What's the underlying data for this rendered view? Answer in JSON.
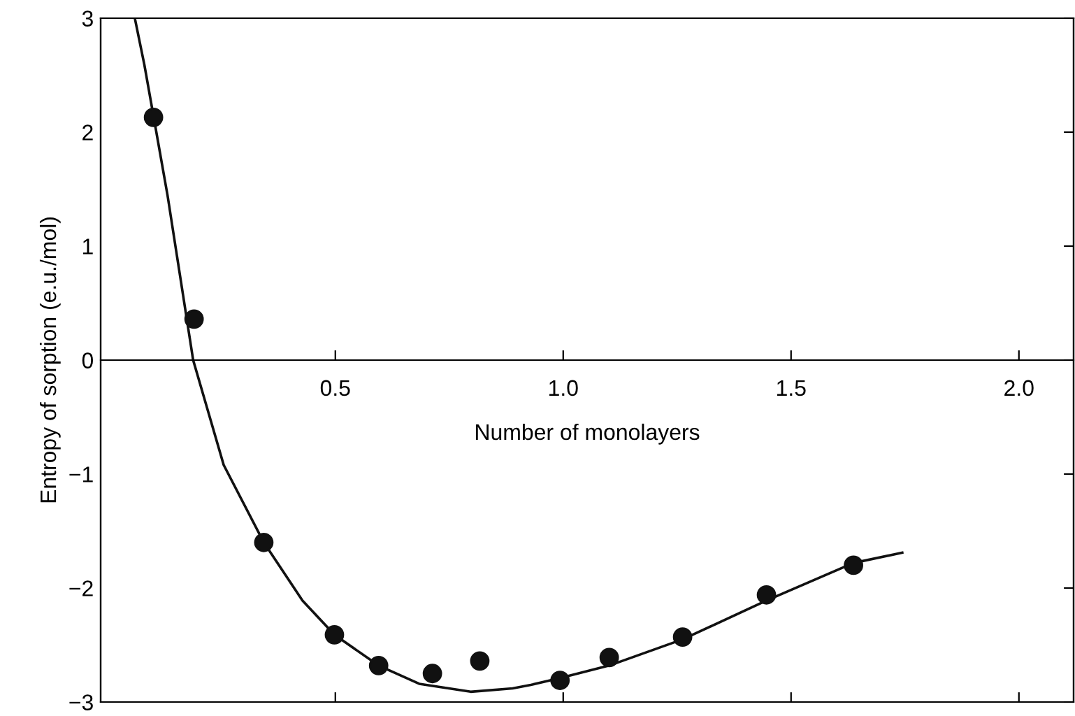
{
  "chart_data": {
    "type": "scatter",
    "xlabel": "Number of monolayers",
    "ylabel": "Entropy of sorption (e.u./mol)",
    "xlim": [
      -0.015,
      2.12
    ],
    "ylim": [
      -3,
      3
    ],
    "xticks": [
      {
        "value": 0.5,
        "label": "0.5"
      },
      {
        "value": 1.0,
        "label": "1.0"
      },
      {
        "value": 1.5,
        "label": "1.5"
      },
      {
        "value": 2.0,
        "label": "2.0"
      }
    ],
    "yticks": [
      {
        "value": -3,
        "label": "−3"
      },
      {
        "value": -2,
        "label": "−2"
      },
      {
        "value": -1,
        "label": "−1"
      },
      0,
      1,
      2,
      3
    ],
    "grid": false,
    "legend": false,
    "series": [
      {
        "color": "#111111",
        "marker": "circle",
        "x": [
          0.101,
          0.19,
          0.343,
          0.498,
          0.595,
          0.713,
          0.817,
          0.993,
          1.101,
          1.262,
          1.446,
          1.637
        ],
        "values": [
          2.13,
          0.36,
          -1.6,
          -2.41,
          -2.68,
          -2.75,
          -2.64,
          -2.81,
          -2.61,
          -2.43,
          -2.06,
          -1.8
        ]
      },
      {
        "type": "line",
        "color": "#111111",
        "marker": "none",
        "line_style": "solid",
        "x": [
          0.06,
          0.081,
          0.101,
          0.132,
          0.188,
          0.255,
          0.343,
          0.428,
          0.498,
          0.595,
          0.684,
          0.797,
          0.889,
          0.929,
          0.993,
          1.101,
          1.262,
          1.446,
          1.637,
          1.744
        ],
        "values": [
          3.0,
          2.59,
          2.14,
          1.44,
          0.0,
          -0.92,
          -1.6,
          -2.11,
          -2.41,
          -2.68,
          -2.84,
          -2.91,
          -2.88,
          -2.85,
          -2.79,
          -2.68,
          -2.45,
          -2.11,
          -1.78,
          -1.69
        ]
      }
    ]
  }
}
